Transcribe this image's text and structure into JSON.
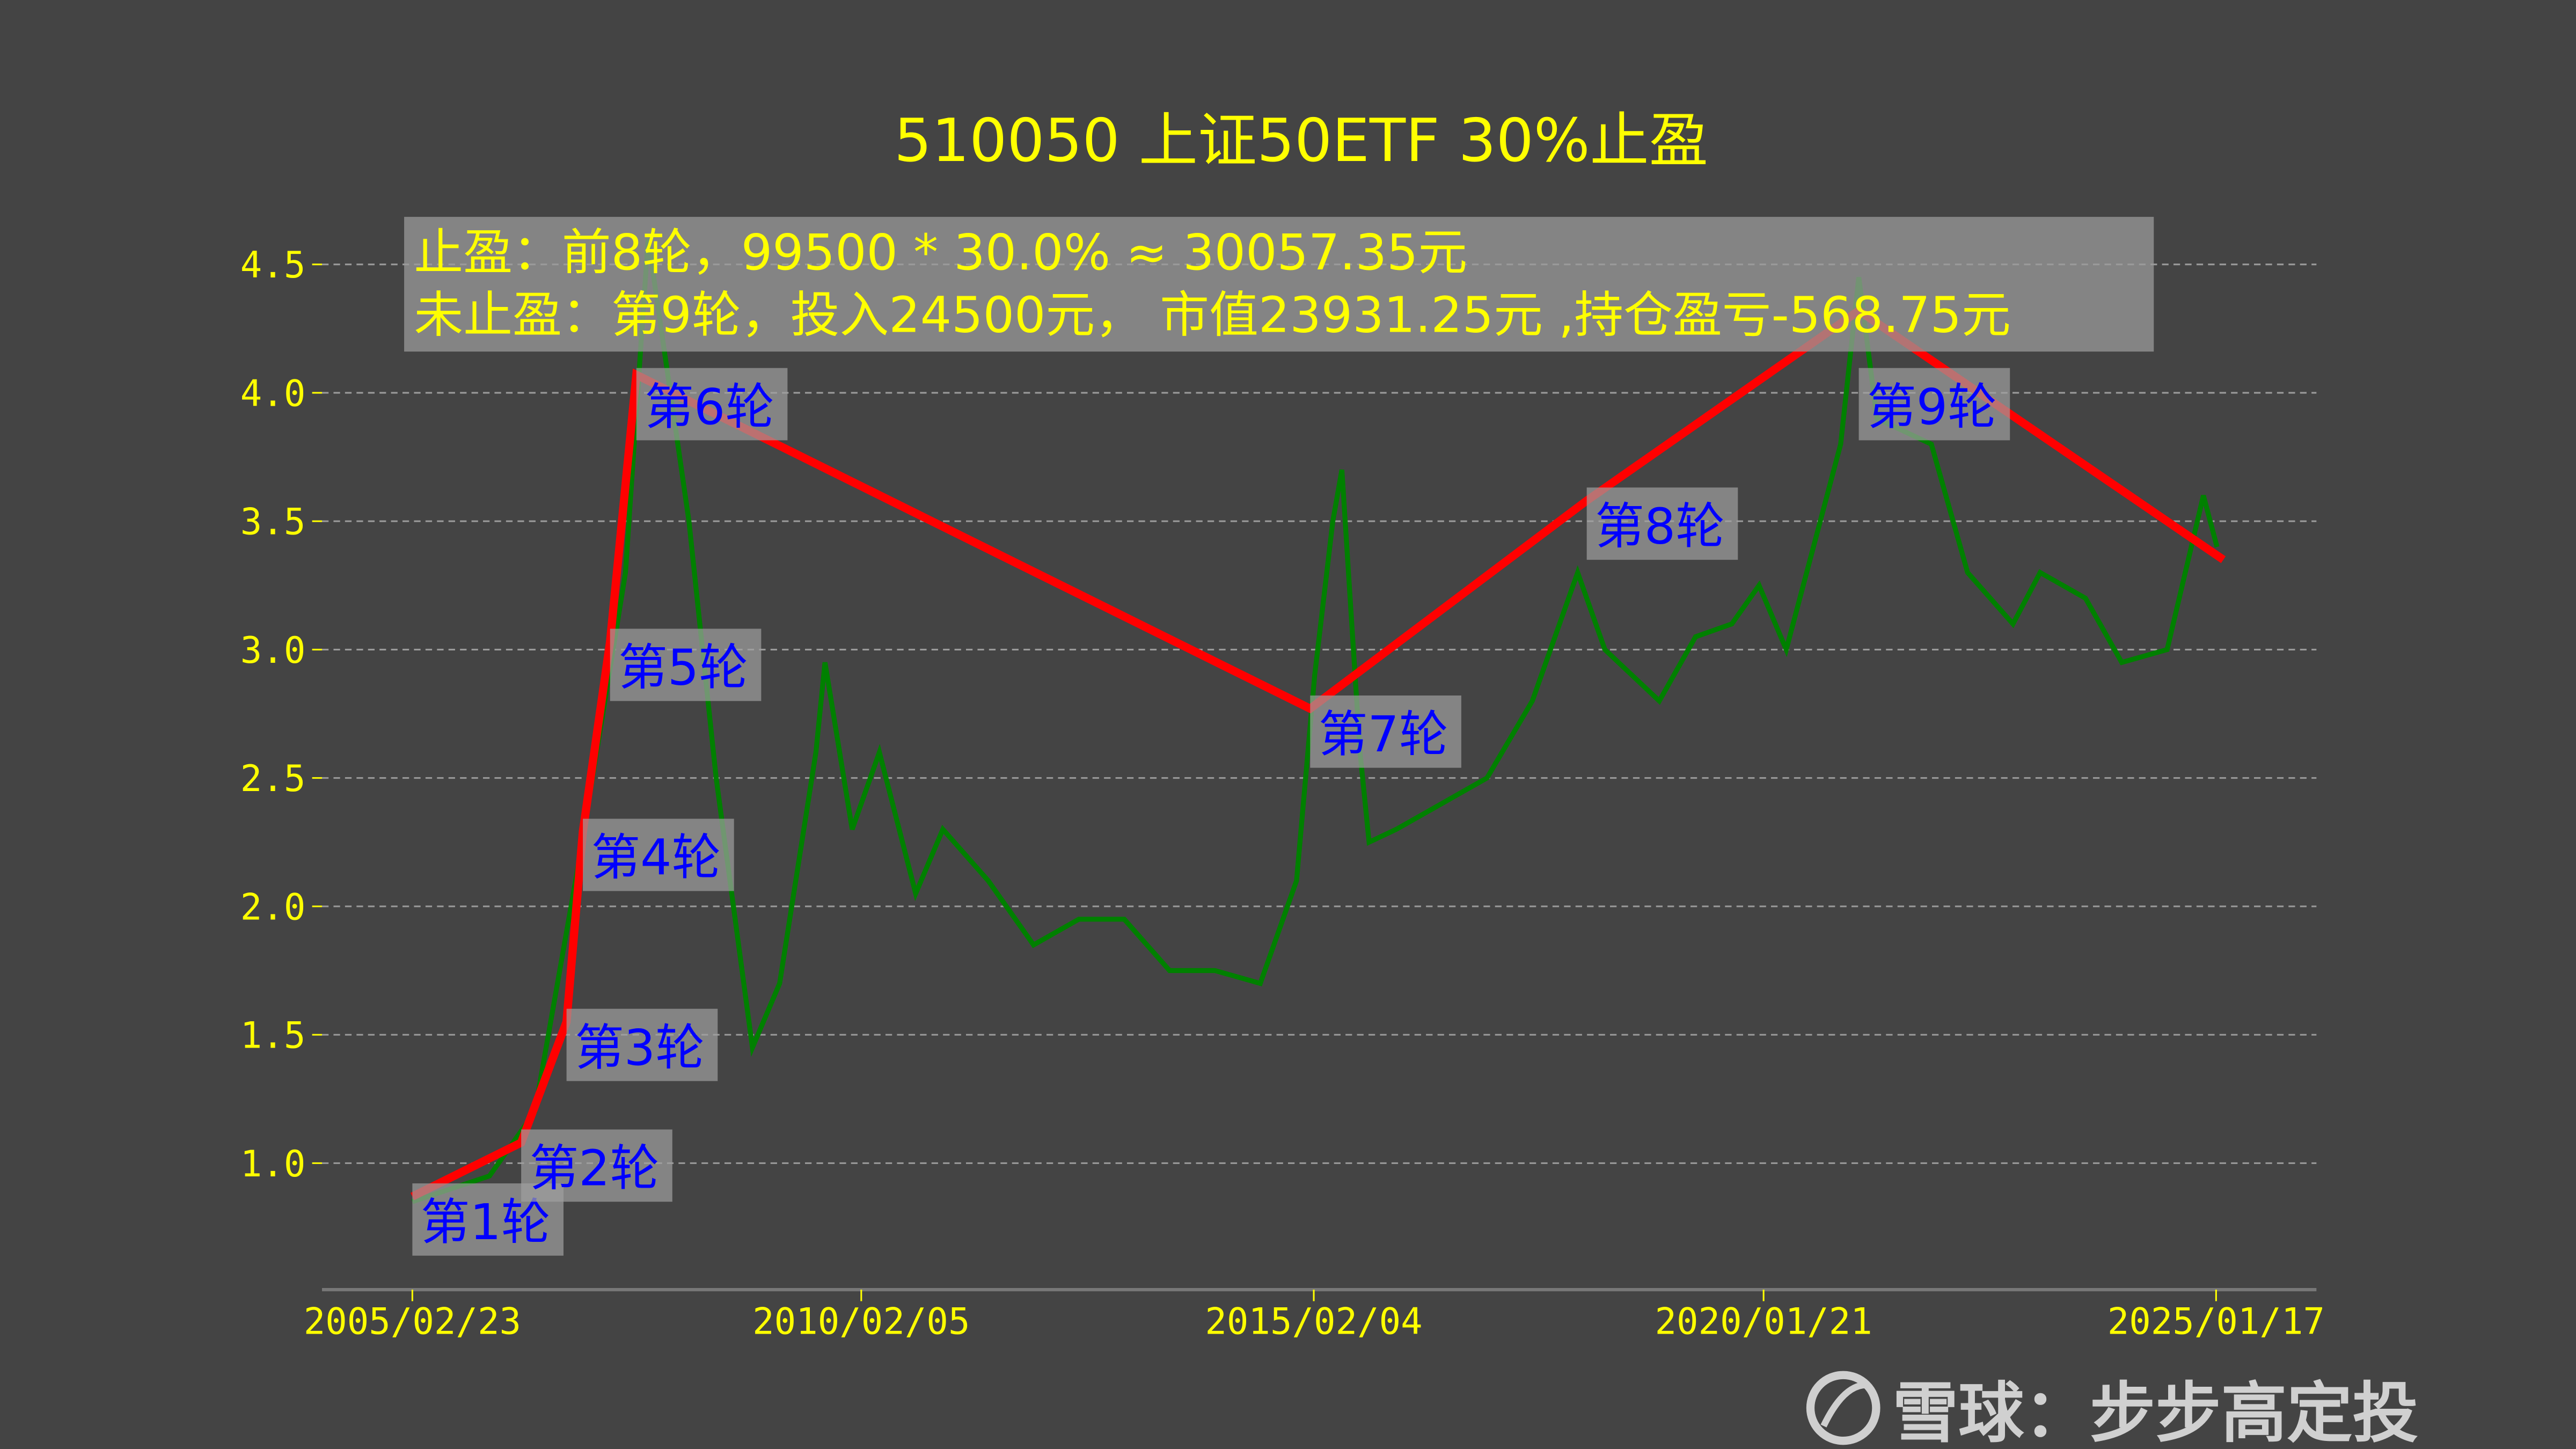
{
  "chart_data": {
    "type": "line",
    "title": "510050 上证50ETF 30%止盈",
    "annotation_lines": [
      "止盈：前8轮，99500 * 30.0% ≈ 30057.35元",
      "未止盈：第9轮，投入24500元，  市值23931.25元 ,持仓盈亏-568.75元"
    ],
    "x_ticks": [
      "2005/02/23",
      "2010/02/05",
      "2015/02/04",
      "2020/01/21",
      "2025/01/17"
    ],
    "x_tick_years": [
      2005.15,
      2010.1,
      2015.09,
      2020.05,
      2025.04
    ],
    "y_ticks": [
      "1.0",
      "1.5",
      "2.0",
      "2.5",
      "3.0",
      "3.5",
      "4.0",
      "4.5"
    ],
    "ylim": [
      0.5,
      4.75
    ],
    "xlim_years": [
      2004.3,
      2026.0
    ],
    "grid": "horizontal dashed",
    "price_series": {
      "color": "#008000",
      "points": [
        [
          2005.15,
          0.85
        ],
        [
          2006.0,
          0.95
        ],
        [
          2006.5,
          1.2
        ],
        [
          2007.0,
          2.2
        ],
        [
          2007.5,
          3.3
        ],
        [
          2007.75,
          4.6
        ],
        [
          2008.2,
          3.5
        ],
        [
          2008.5,
          2.5
        ],
        [
          2008.9,
          1.45
        ],
        [
          2009.2,
          1.7
        ],
        [
          2009.6,
          2.6
        ],
        [
          2009.7,
          2.95
        ],
        [
          2010.0,
          2.3
        ],
        [
          2010.3,
          2.6
        ],
        [
          2010.7,
          2.05
        ],
        [
          2011.0,
          2.3
        ],
        [
          2011.5,
          2.1
        ],
        [
          2012.0,
          1.85
        ],
        [
          2012.5,
          1.95
        ],
        [
          2013.0,
          1.95
        ],
        [
          2013.5,
          1.75
        ],
        [
          2014.0,
          1.75
        ],
        [
          2014.5,
          1.7
        ],
        [
          2014.9,
          2.1
        ],
        [
          2015.1,
          2.9
        ],
        [
          2015.3,
          3.5
        ],
        [
          2015.4,
          3.7
        ],
        [
          2015.6,
          2.6
        ],
        [
          2015.7,
          2.25
        ],
        [
          2016.0,
          2.3
        ],
        [
          2016.5,
          2.4
        ],
        [
          2017.0,
          2.5
        ],
        [
          2017.5,
          2.8
        ],
        [
          2018.0,
          3.3
        ],
        [
          2018.3,
          3.0
        ],
        [
          2018.9,
          2.8
        ],
        [
          2019.3,
          3.05
        ],
        [
          2019.7,
          3.1
        ],
        [
          2020.0,
          3.25
        ],
        [
          2020.3,
          3.0
        ],
        [
          2020.6,
          3.4
        ],
        [
          2020.9,
          3.8
        ],
        [
          2021.1,
          4.45
        ],
        [
          2021.3,
          3.9
        ],
        [
          2021.9,
          3.8
        ],
        [
          2022.3,
          3.3
        ],
        [
          2022.8,
          3.1
        ],
        [
          2023.1,
          3.3
        ],
        [
          2023.6,
          3.2
        ],
        [
          2024.0,
          2.95
        ],
        [
          2024.5,
          3.0
        ],
        [
          2024.9,
          3.6
        ],
        [
          2025.05,
          3.4
        ]
      ]
    },
    "rounds_series": {
      "color": "#ff0000",
      "points": [
        {
          "label": "第1轮",
          "year": 2005.15,
          "value": 0.87
        },
        {
          "label": "第2轮",
          "year": 2006.35,
          "value": 1.08
        },
        {
          "label": "第3轮",
          "year": 2006.85,
          "value": 1.55
        },
        {
          "label": "第4轮",
          "year": 2007.03,
          "value": 2.29
        },
        {
          "label": "第5轮",
          "year": 2007.33,
          "value": 3.03
        },
        {
          "label": "第6轮",
          "year": 2007.62,
          "value": 4.07
        },
        {
          "label": "第7轮",
          "year": 2015.05,
          "value": 2.77
        },
        {
          "label": "第8轮",
          "year": 2018.1,
          "value": 3.58
        },
        {
          "label": "第9轮",
          "year": 2021.1,
          "value": 4.32
        },
        {
          "label": "",
          "year": 2025.12,
          "value": 3.35
        }
      ]
    }
  },
  "watermark": {
    "text": "雪球：步步高定投",
    "icon": "snowball-logo-icon"
  }
}
